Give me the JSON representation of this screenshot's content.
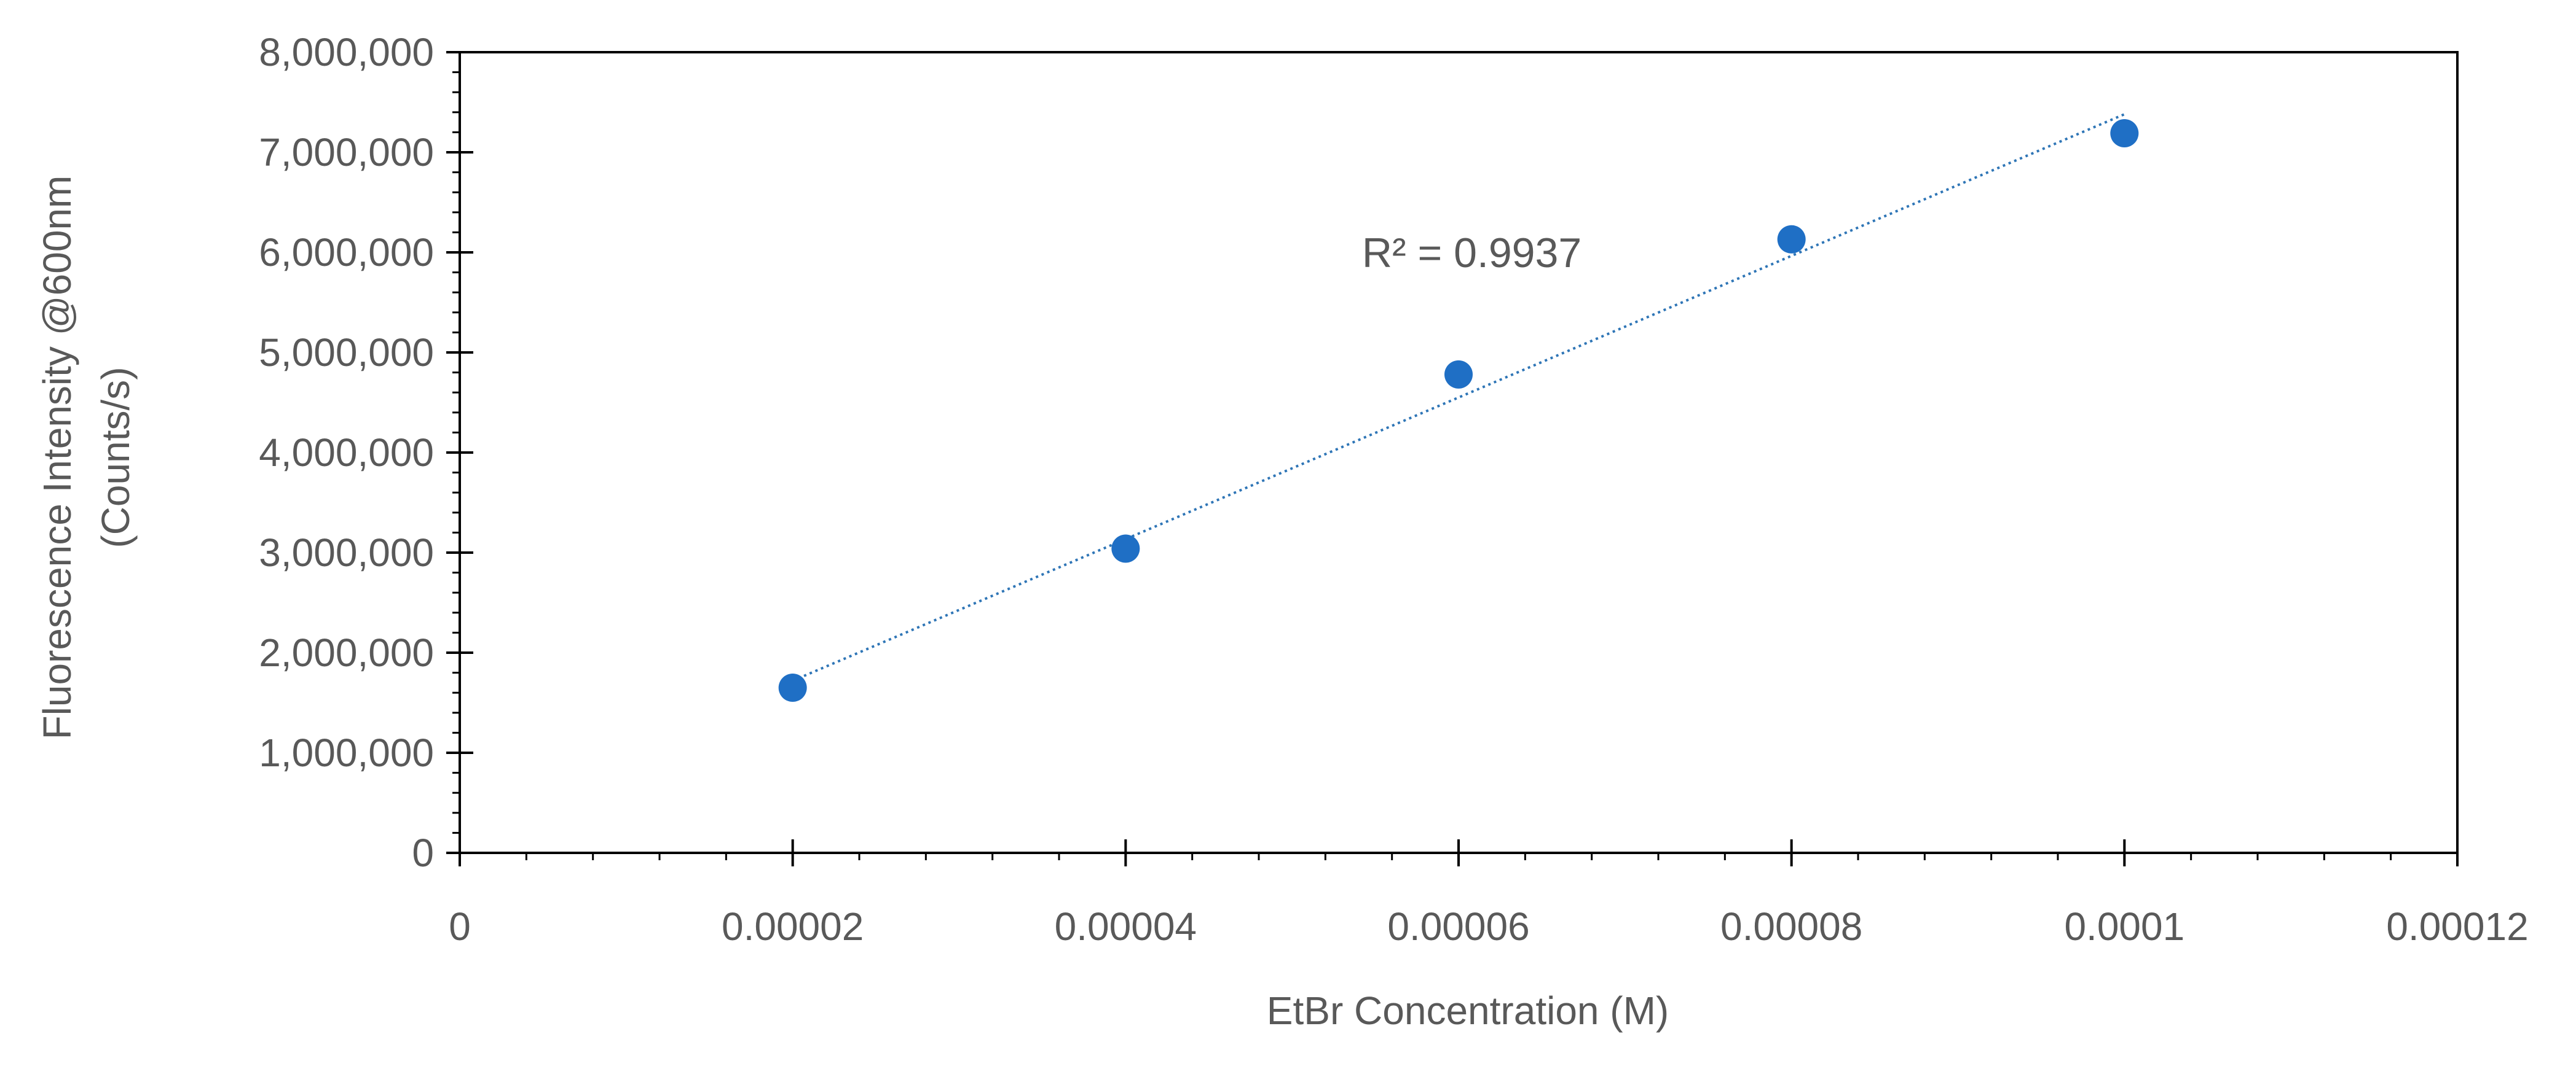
{
  "chart_data": {
    "type": "scatter",
    "title": "",
    "xlabel": "EtBr Concentration (M)",
    "ylabel": [
      "Fluorescence Intensity @600nm",
      "(Counts/s)"
    ],
    "xlim": [
      0,
      0.00012
    ],
    "ylim": [
      0,
      8000000
    ],
    "x_ticks": [
      0,
      2e-05,
      4e-05,
      6e-05,
      8e-05,
      0.0001,
      0.00012
    ],
    "x_tick_labels": [
      "0",
      "0.00002",
      "0.00004",
      "0.00006",
      "0.00008",
      "0.0001",
      "0.00012"
    ],
    "y_ticks": [
      0,
      1000000,
      2000000,
      3000000,
      4000000,
      5000000,
      6000000,
      7000000,
      8000000
    ],
    "y_tick_labels": [
      "0",
      "1,000,000",
      "2,000,000",
      "3,000,000",
      "4,000,000",
      "5,000,000",
      "6,000,000",
      "7,000,000",
      "8,000,000"
    ],
    "grid": false,
    "legend": "none",
    "series": [
      {
        "x": [
          2e-05,
          4e-05,
          6e-05,
          8e-05,
          0.0001
        ],
        "y": [
          1650000,
          3040000,
          4780000,
          6130000,
          7190000
        ]
      }
    ],
    "trendline": {
      "type": "linear",
      "x": [
        2e-05,
        0.0001
      ],
      "y": [
        1720000,
        7380000
      ]
    },
    "annotations": [
      {
        "text": "R² = 0.9937",
        "x": 5.42e-05,
        "y": 6000000
      }
    ],
    "colors": {
      "points": "#1f6fc5",
      "trendline": "#2e75b6",
      "axes": "#000000",
      "text": "#595959"
    }
  }
}
